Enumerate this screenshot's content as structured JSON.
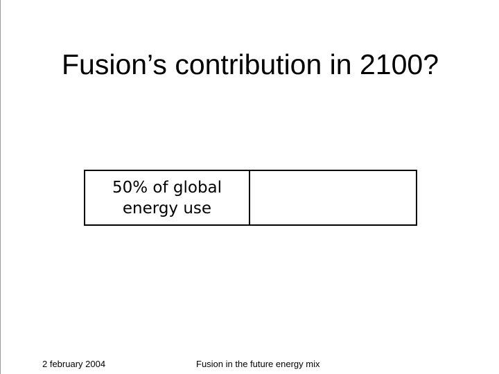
{
  "title": "Fusion’s contribution in 2100?",
  "table": {
    "rows": [
      [
        "50% of global energy use"
      ]
    ]
  },
  "footer": {
    "date": "2 february 2004",
    "subject": "Fusion in the future energy mix"
  }
}
